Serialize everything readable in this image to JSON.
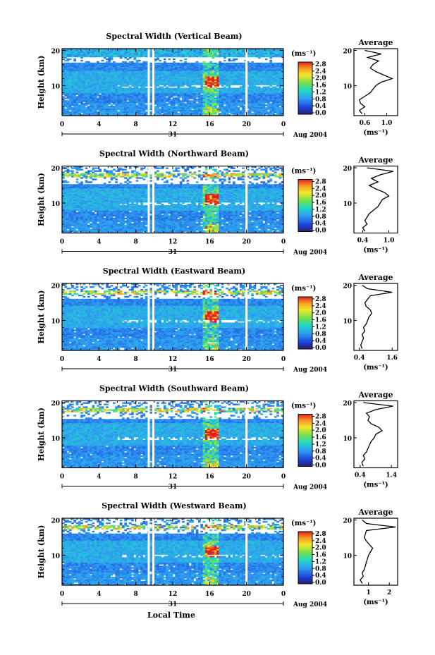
{
  "chart_data": [
    {
      "type": "heatmap",
      "title": "Spectral Width (Vertical Beam)",
      "ylabel": "Height (km)",
      "x_ticks": [
        "0",
        "4",
        "8",
        "12",
        "16",
        "20",
        "0"
      ],
      "y_ticks": [
        "10",
        "20"
      ],
      "xlim": [
        0,
        24
      ],
      "ylim": [
        1.5,
        20.5
      ],
      "date_day": "31",
      "date_label": "Aug 2004",
      "colorbar": {
        "unit": "(ms⁻¹)",
        "ticks": [
          "0.0",
          "0.4",
          "0.8",
          "1.2",
          "1.6",
          "2.0",
          "2.4",
          "2.8"
        ],
        "range": [
          0,
          3.0
        ]
      },
      "profile": {
        "title": "Average",
        "xlabel": "(ms⁻¹)",
        "x_ticks": [
          "0.6",
          "1.0"
        ],
        "x_tick_values": [
          0.6,
          1.0
        ],
        "xlim": [
          0.4,
          1.2
        ],
        "y_ticks": [
          "10",
          "20"
        ],
        "heights": [
          2,
          3,
          4,
          5,
          6,
          7,
          8,
          9,
          10,
          11,
          12,
          13,
          14,
          15,
          16,
          17,
          18,
          19,
          20
        ],
        "values": [
          0.55,
          0.5,
          0.6,
          0.52,
          0.5,
          0.6,
          0.7,
          0.75,
          0.8,
          0.9,
          1.1,
          0.95,
          0.8,
          0.7,
          0.75,
          0.85,
          0.65,
          0.9,
          0.6
        ]
      }
    },
    {
      "type": "heatmap",
      "title": "Spectral Width (Northward Beam)",
      "ylabel": "Height (km)",
      "x_ticks": [
        "0",
        "4",
        "8",
        "12",
        "16",
        "20",
        "0"
      ],
      "y_ticks": [
        "10",
        "20"
      ],
      "xlim": [
        0,
        24
      ],
      "ylim": [
        1.5,
        20.5
      ],
      "date_day": "31",
      "date_label": "Aug 2004",
      "colorbar": {
        "unit": "(ms⁻¹)",
        "ticks": [
          "0.0",
          "0.4",
          "0.8",
          "1.2",
          "1.6",
          "2.0",
          "2.4",
          "2.8"
        ],
        "range": [
          0,
          3.0
        ]
      },
      "profile": {
        "title": "Average",
        "xlabel": "(ms⁻¹)",
        "x_ticks": [
          "0.4",
          "1.0"
        ],
        "x_tick_values": [
          0.4,
          1.0
        ],
        "xlim": [
          0.2,
          1.2
        ],
        "y_ticks": [
          "10",
          "20"
        ],
        "heights": [
          2,
          3,
          4,
          5,
          6,
          7,
          8,
          9,
          10,
          11,
          12,
          13,
          14,
          15,
          16,
          17,
          18,
          19,
          20
        ],
        "values": [
          0.45,
          0.4,
          0.5,
          0.45,
          0.5,
          0.55,
          0.65,
          0.75,
          0.8,
          0.85,
          1.0,
          0.9,
          0.7,
          0.55,
          0.75,
          0.6,
          0.8,
          1.1,
          0.5
        ]
      }
    },
    {
      "type": "heatmap",
      "title": "Spectral Width (Eastward Beam)",
      "ylabel": "Height (km)",
      "x_ticks": [
        "0",
        "4",
        "8",
        "12",
        "16",
        "20",
        "0"
      ],
      "y_ticks": [
        "10",
        "20"
      ],
      "xlim": [
        0,
        24
      ],
      "ylim": [
        1.5,
        20.5
      ],
      "date_day": "31",
      "date_label": "Aug 2004",
      "colorbar": {
        "unit": "(ms⁻¹)",
        "ticks": [
          "0.0",
          "0.4",
          "0.8",
          "1.2",
          "1.6",
          "2.0",
          "2.4",
          "2.8"
        ],
        "range": [
          0,
          3.0
        ]
      },
      "profile": {
        "title": "Average",
        "xlabel": "(ms⁻¹)",
        "x_ticks": [
          "0.4",
          "1.6"
        ],
        "x_tick_values": [
          0.4,
          1.6
        ],
        "xlim": [
          0.2,
          1.8
        ],
        "y_ticks": [
          "10",
          "20"
        ],
        "heights": [
          2,
          3,
          4,
          5,
          6,
          7,
          8,
          9,
          10,
          11,
          12,
          13,
          14,
          15,
          16,
          17,
          18,
          19,
          20
        ],
        "values": [
          0.5,
          0.45,
          0.5,
          0.55,
          0.5,
          0.6,
          0.55,
          0.65,
          0.7,
          0.75,
          0.85,
          0.8,
          0.65,
          0.6,
          0.7,
          0.8,
          1.6,
          0.7,
          0.5
        ]
      }
    },
    {
      "type": "heatmap",
      "title": "Spectral Width (Southward Beam)",
      "ylabel": "Height (km)",
      "x_ticks": [
        "0",
        "4",
        "8",
        "12",
        "16",
        "20",
        "0"
      ],
      "y_ticks": [
        "10",
        "20"
      ],
      "xlim": [
        0,
        24
      ],
      "ylim": [
        1.5,
        20.5
      ],
      "date_day": "31",
      "date_label": "Aug 2004",
      "colorbar": {
        "unit": "(ms⁻¹)",
        "ticks": [
          "0.0",
          "0.4",
          "0.8",
          "1.2",
          "1.6",
          "2.0",
          "2.4",
          "2.8"
        ],
        "range": [
          0,
          3.0
        ]
      },
      "profile": {
        "title": "Average",
        "xlabel": "(ms⁻¹)",
        "x_ticks": [
          "0.4",
          "1.4"
        ],
        "x_tick_values": [
          0.4,
          1.4
        ],
        "xlim": [
          0.2,
          1.6
        ],
        "y_ticks": [
          "10",
          "20"
        ],
        "heights": [
          2,
          3,
          4,
          5,
          6,
          7,
          8,
          9,
          10,
          11,
          12,
          13,
          14,
          15,
          16,
          17,
          18,
          19,
          20
        ],
        "values": [
          0.5,
          0.45,
          0.55,
          0.5,
          0.6,
          0.65,
          0.7,
          0.75,
          0.85,
          0.9,
          1.1,
          1.0,
          0.75,
          0.65,
          0.7,
          0.6,
          0.9,
          1.45,
          0.5
        ]
      }
    },
    {
      "type": "heatmap",
      "title": "Spectral Width (Westward Beam)",
      "ylabel": "Height (km)",
      "xlabel": "Local Time",
      "x_ticks": [
        "0",
        "4",
        "8",
        "12",
        "16",
        "20",
        "0"
      ],
      "y_ticks": [
        "10",
        "20"
      ],
      "xlim": [
        0,
        24
      ],
      "ylim": [
        1.5,
        20.5
      ],
      "date_day": "31",
      "date_label": "Aug 2004",
      "colorbar": {
        "unit": "(ms⁻¹)",
        "ticks": [
          "0.0",
          "0.4",
          "0.8",
          "1.2",
          "1.6",
          "2.0",
          "2.4",
          "2.8"
        ],
        "range": [
          0,
          3.0
        ]
      },
      "profile": {
        "title": "Average",
        "xlabel": "(ms⁻¹)",
        "x_ticks": [
          "1",
          "2"
        ],
        "x_tick_values": [
          1,
          2
        ],
        "xlim": [
          0.3,
          2.4
        ],
        "y_ticks": [
          "10",
          "20"
        ],
        "heights": [
          2,
          3,
          4,
          5,
          6,
          7,
          8,
          9,
          10,
          11,
          12,
          13,
          14,
          15,
          16,
          17,
          18,
          19,
          20
        ],
        "values": [
          0.7,
          0.6,
          0.75,
          0.7,
          0.8,
          0.85,
          0.9,
          0.95,
          1.0,
          1.1,
          1.2,
          1.05,
          0.9,
          0.8,
          0.85,
          0.9,
          2.3,
          0.9,
          0.7
        ]
      }
    }
  ]
}
